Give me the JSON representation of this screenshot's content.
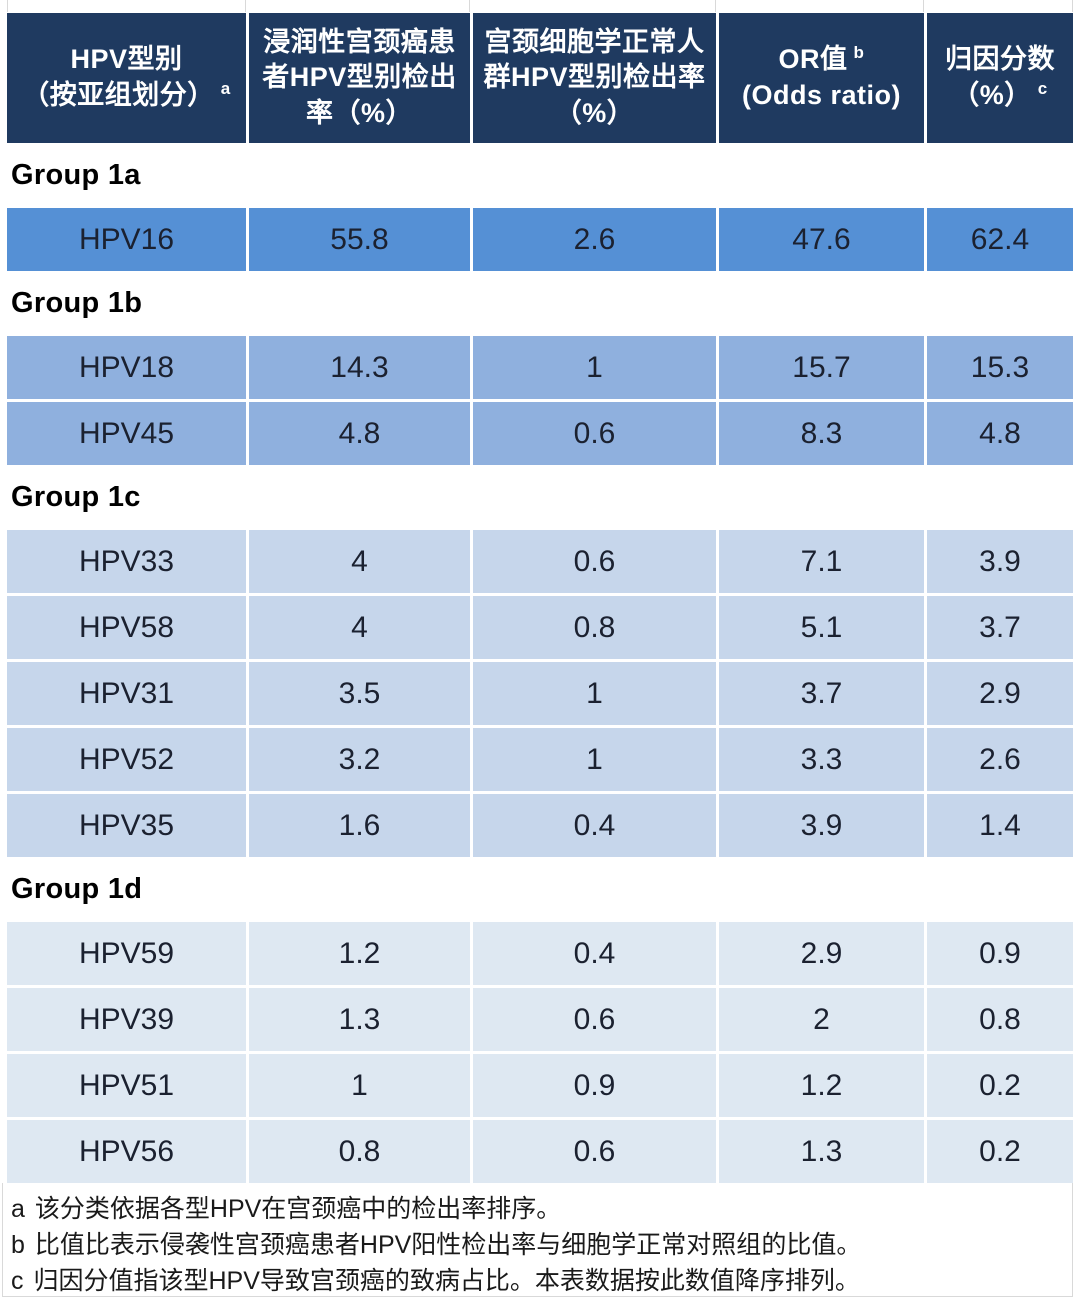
{
  "colors": {
    "header_bg": "#1f3a60",
    "header_text": "#ffffff",
    "row_text": "#1b2130",
    "grid_line": "#d9d9d9",
    "group_1a_row": "#5590d5",
    "group_1b_row": "#8fb0de",
    "group_1c_row": "#c6d6eb",
    "group_1d_row": "#dee8f2"
  },
  "table": {
    "columns": [
      {
        "lines": [
          "HPV型别",
          "（按亚组划分）"
        ],
        "sup": "a",
        "sup_after_line": 1
      },
      {
        "lines": [
          "浸润性宫颈癌患",
          "者HPV型别检出",
          "率（%）"
        ],
        "sup": null,
        "sup_after_line": null
      },
      {
        "lines": [
          "宫颈细胞学正常人",
          "群HPV型别检出率",
          "（%）"
        ],
        "sup": null,
        "sup_after_line": null
      },
      {
        "lines": [
          "OR值",
          "(Odds ratio)"
        ],
        "sup": "b",
        "sup_after_line": 0
      },
      {
        "lines": [
          "归因分数",
          "（%）"
        ],
        "sup": "c",
        "sup_after_line": 1
      }
    ],
    "groups": [
      {
        "label": "Group 1a",
        "row_color": "#5590d5",
        "rows": [
          {
            "type": "HPV16",
            "values": [
              "55.8",
              "2.6",
              "47.6",
              "62.4"
            ]
          }
        ]
      },
      {
        "label": "Group 1b",
        "row_color": "#8fb0de",
        "rows": [
          {
            "type": "HPV18",
            "values": [
              "14.3",
              "1",
              "15.7",
              "15.3"
            ]
          },
          {
            "type": "HPV45",
            "values": [
              "4.8",
              "0.6",
              "8.3",
              "4.8"
            ]
          }
        ]
      },
      {
        "label": "Group 1c",
        "row_color": "#c6d6eb",
        "rows": [
          {
            "type": "HPV33",
            "values": [
              "4",
              "0.6",
              "7.1",
              "3.9"
            ]
          },
          {
            "type": "HPV58",
            "values": [
              "4",
              "0.8",
              "5.1",
              "3.7"
            ]
          },
          {
            "type": "HPV31",
            "values": [
              "3.5",
              "1",
              "3.7",
              "2.9"
            ]
          },
          {
            "type": "HPV52",
            "values": [
              "3.2",
              "1",
              "3.3",
              "2.6"
            ]
          },
          {
            "type": "HPV35",
            "values": [
              "1.6",
              "0.4",
              "3.9",
              "1.4"
            ]
          }
        ]
      },
      {
        "label": "Group 1d",
        "row_color": "#dee8f2",
        "rows": [
          {
            "type": "HPV59",
            "values": [
              "1.2",
              "0.4",
              "2.9",
              "0.9"
            ]
          },
          {
            "type": "HPV39",
            "values": [
              "1.3",
              "0.6",
              "2",
              "0.8"
            ]
          },
          {
            "type": "HPV51",
            "values": [
              "1",
              "0.9",
              "1.2",
              "0.2"
            ]
          },
          {
            "type": "HPV56",
            "values": [
              "0.8",
              "0.6",
              "1.3",
              "0.2"
            ]
          }
        ]
      }
    ],
    "footnotes": [
      {
        "marker": "a",
        "text": "该分类依据各型HPV在宫颈癌中的检出率排序。"
      },
      {
        "marker": "b",
        "text": "比值比表示侵袭性宫颈癌患者HPV阳性检出率与细胞学正常对照组的比值。"
      },
      {
        "marker": "c",
        "text": "归因分值指该型HPV导致宫颈癌的致病占比。本表数据按此数值降序排列。"
      }
    ]
  }
}
